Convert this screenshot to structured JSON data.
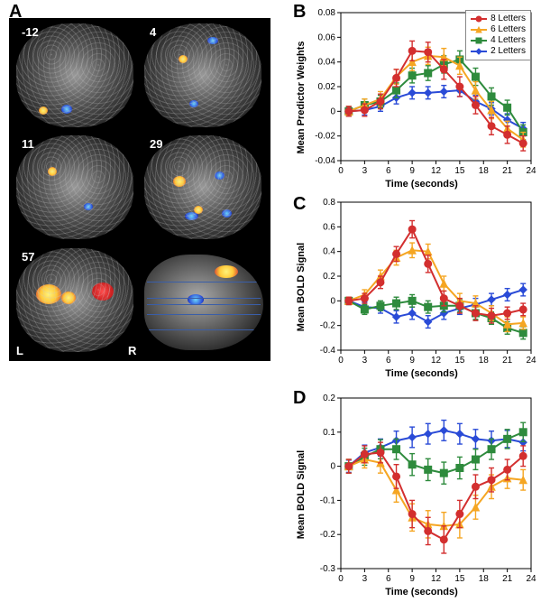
{
  "panelA": {
    "label": "A",
    "bg": "#000000",
    "slice_labels": [
      "-12",
      "4",
      "11",
      "29",
      "57"
    ],
    "LR": {
      "L": "L",
      "R": "R"
    }
  },
  "legend": {
    "series": [
      {
        "key": "s8",
        "label": "8 Letters",
        "color": "#d32f2f",
        "marker": "circle"
      },
      {
        "key": "s6",
        "label": "6 Letters",
        "color": "#f5a623",
        "marker": "triangle"
      },
      {
        "key": "s4",
        "label": "4 Letters",
        "color": "#2e8b3d",
        "marker": "square"
      },
      {
        "key": "s2",
        "label": "2 Letters",
        "color": "#2a4bd7",
        "marker": "diamond"
      }
    ]
  },
  "chartB": {
    "label": "B",
    "ylabel": "Mean Predictor Weights",
    "xlabel": "Time (seconds)",
    "xlim": [
      0,
      24
    ],
    "ylim": [
      -0.04,
      0.08
    ],
    "xticks": [
      0,
      3,
      6,
      9,
      12,
      15,
      18,
      21,
      24
    ],
    "yticks": [
      -0.04,
      -0.02,
      0,
      0.02,
      0.04,
      0.06,
      0.08
    ],
    "x": [
      1,
      3,
      5,
      7,
      9,
      11,
      13,
      15,
      17,
      19,
      21,
      23
    ],
    "series": {
      "s8": {
        "y": [
          0.0,
          0.001,
          0.008,
          0.027,
          0.049,
          0.048,
          0.034,
          0.02,
          0.005,
          -0.012,
          -0.019,
          -0.026
        ],
        "err": [
          0.004,
          0.005,
          0.006,
          0.007,
          0.008,
          0.008,
          0.008,
          0.008,
          0.007,
          0.007,
          0.007,
          0.006
        ]
      },
      "s6": {
        "y": [
          0.0,
          0.005,
          0.01,
          0.028,
          0.04,
          0.045,
          0.044,
          0.037,
          0.017,
          0.001,
          -0.014,
          -0.023
        ],
        "err": [
          0.004,
          0.005,
          0.006,
          0.006,
          0.007,
          0.007,
          0.007,
          0.007,
          0.007,
          0.007,
          0.006,
          0.006
        ]
      },
      "s4": {
        "y": [
          0.0,
          0.005,
          0.008,
          0.017,
          0.029,
          0.031,
          0.038,
          0.042,
          0.028,
          0.012,
          0.003,
          -0.017
        ],
        "err": [
          0.004,
          0.005,
          0.005,
          0.006,
          0.006,
          0.006,
          0.007,
          0.007,
          0.007,
          0.007,
          0.006,
          0.006
        ]
      },
      "s2": {
        "y": [
          0.0,
          0.001,
          0.004,
          0.011,
          0.015,
          0.015,
          0.016,
          0.017,
          0.008,
          0.002,
          -0.007,
          -0.014
        ],
        "err": [
          0.003,
          0.004,
          0.004,
          0.005,
          0.005,
          0.005,
          0.005,
          0.005,
          0.005,
          0.005,
          0.005,
          0.005
        ]
      }
    }
  },
  "chartC": {
    "label": "C",
    "ylabel": "Mean BOLD Signal",
    "xlabel": "Time (seconds)",
    "xlim": [
      0,
      24
    ],
    "ylim": [
      -0.4,
      0.8
    ],
    "xticks": [
      0,
      3,
      6,
      9,
      12,
      15,
      18,
      21,
      24
    ],
    "yticks": [
      -0.4,
      -0.2,
      0,
      0.2,
      0.4,
      0.6,
      0.8
    ],
    "x": [
      1,
      3,
      5,
      7,
      9,
      11,
      13,
      15,
      17,
      19,
      21,
      23
    ],
    "series": {
      "s8": {
        "y": [
          0.0,
          0.02,
          0.15,
          0.38,
          0.58,
          0.3,
          0.02,
          -0.04,
          -0.1,
          -0.12,
          -0.1,
          -0.07
        ],
        "err": [
          0.03,
          0.04,
          0.05,
          0.06,
          0.07,
          0.07,
          0.06,
          0.06,
          0.06,
          0.06,
          0.05,
          0.05
        ]
      },
      "s6": {
        "y": [
          0.0,
          0.05,
          0.2,
          0.35,
          0.41,
          0.4,
          0.14,
          0.0,
          -0.02,
          -0.1,
          -0.19,
          -0.18
        ],
        "err": [
          0.03,
          0.04,
          0.05,
          0.06,
          0.06,
          0.06,
          0.06,
          0.06,
          0.06,
          0.06,
          0.06,
          0.05
        ]
      },
      "s4": {
        "y": [
          0.0,
          -0.07,
          -0.04,
          -0.02,
          0.0,
          -0.05,
          -0.04,
          -0.04,
          -0.1,
          -0.14,
          -0.22,
          -0.26
        ],
        "err": [
          0.03,
          0.04,
          0.04,
          0.05,
          0.05,
          0.05,
          0.05,
          0.05,
          0.05,
          0.05,
          0.05,
          0.05
        ]
      },
      "s2": {
        "y": [
          0.0,
          -0.05,
          -0.06,
          -0.13,
          -0.1,
          -0.17,
          -0.1,
          -0.06,
          -0.03,
          0.01,
          0.05,
          0.09
        ],
        "err": [
          0.03,
          0.04,
          0.04,
          0.05,
          0.05,
          0.05,
          0.05,
          0.05,
          0.05,
          0.05,
          0.05,
          0.05
        ]
      }
    }
  },
  "chartD": {
    "label": "D",
    "ylabel": "Mean BOLD Signal",
    "xlabel": "Time (seconds)",
    "xlim": [
      0,
      24
    ],
    "ylim": [
      -0.3,
      0.2
    ],
    "xticks": [
      0,
      3,
      6,
      9,
      12,
      15,
      18,
      21,
      24
    ],
    "yticks": [
      -0.3,
      -0.2,
      -0.1,
      0,
      0.1,
      0.2
    ],
    "x": [
      1,
      3,
      5,
      7,
      9,
      11,
      13,
      15,
      17,
      19,
      21,
      23
    ],
    "series": {
      "s8": {
        "y": [
          0.0,
          0.035,
          0.04,
          -0.03,
          -0.14,
          -0.19,
          -0.215,
          -0.14,
          -0.06,
          -0.04,
          -0.01,
          0.03
        ],
        "err": [
          0.02,
          0.025,
          0.03,
          0.035,
          0.04,
          0.04,
          0.04,
          0.04,
          0.035,
          0.035,
          0.03,
          0.03
        ]
      },
      "s6": {
        "y": [
          0.0,
          0.02,
          0.01,
          -0.07,
          -0.15,
          -0.17,
          -0.175,
          -0.17,
          -0.12,
          -0.06,
          -0.035,
          -0.04
        ],
        "err": [
          0.02,
          0.025,
          0.03,
          0.035,
          0.04,
          0.04,
          0.04,
          0.04,
          0.035,
          0.035,
          0.03,
          0.03
        ]
      },
      "s4": {
        "y": [
          0.0,
          0.028,
          0.05,
          0.05,
          0.005,
          -0.01,
          -0.02,
          -0.005,
          0.02,
          0.05,
          0.08,
          0.1
        ],
        "err": [
          0.02,
          0.025,
          0.028,
          0.03,
          0.032,
          0.032,
          0.032,
          0.032,
          0.03,
          0.03,
          0.028,
          0.028
        ]
      },
      "s2": {
        "y": [
          0.0,
          0.04,
          0.055,
          0.075,
          0.085,
          0.095,
          0.105,
          0.095,
          0.08,
          0.075,
          0.08,
          0.07
        ],
        "err": [
          0.018,
          0.022,
          0.025,
          0.028,
          0.03,
          0.03,
          0.03,
          0.03,
          0.028,
          0.028,
          0.025,
          0.025
        ]
      }
    }
  },
  "style": {
    "line_width": 2,
    "marker_size": 4,
    "errorbar_width": 1.4,
    "cap_halfwidth": 3,
    "tick_fontsize": 10,
    "label_fontsize": 11,
    "panel_label_fontsize": 20,
    "axis_color": "#000000",
    "background": "#ffffff"
  }
}
